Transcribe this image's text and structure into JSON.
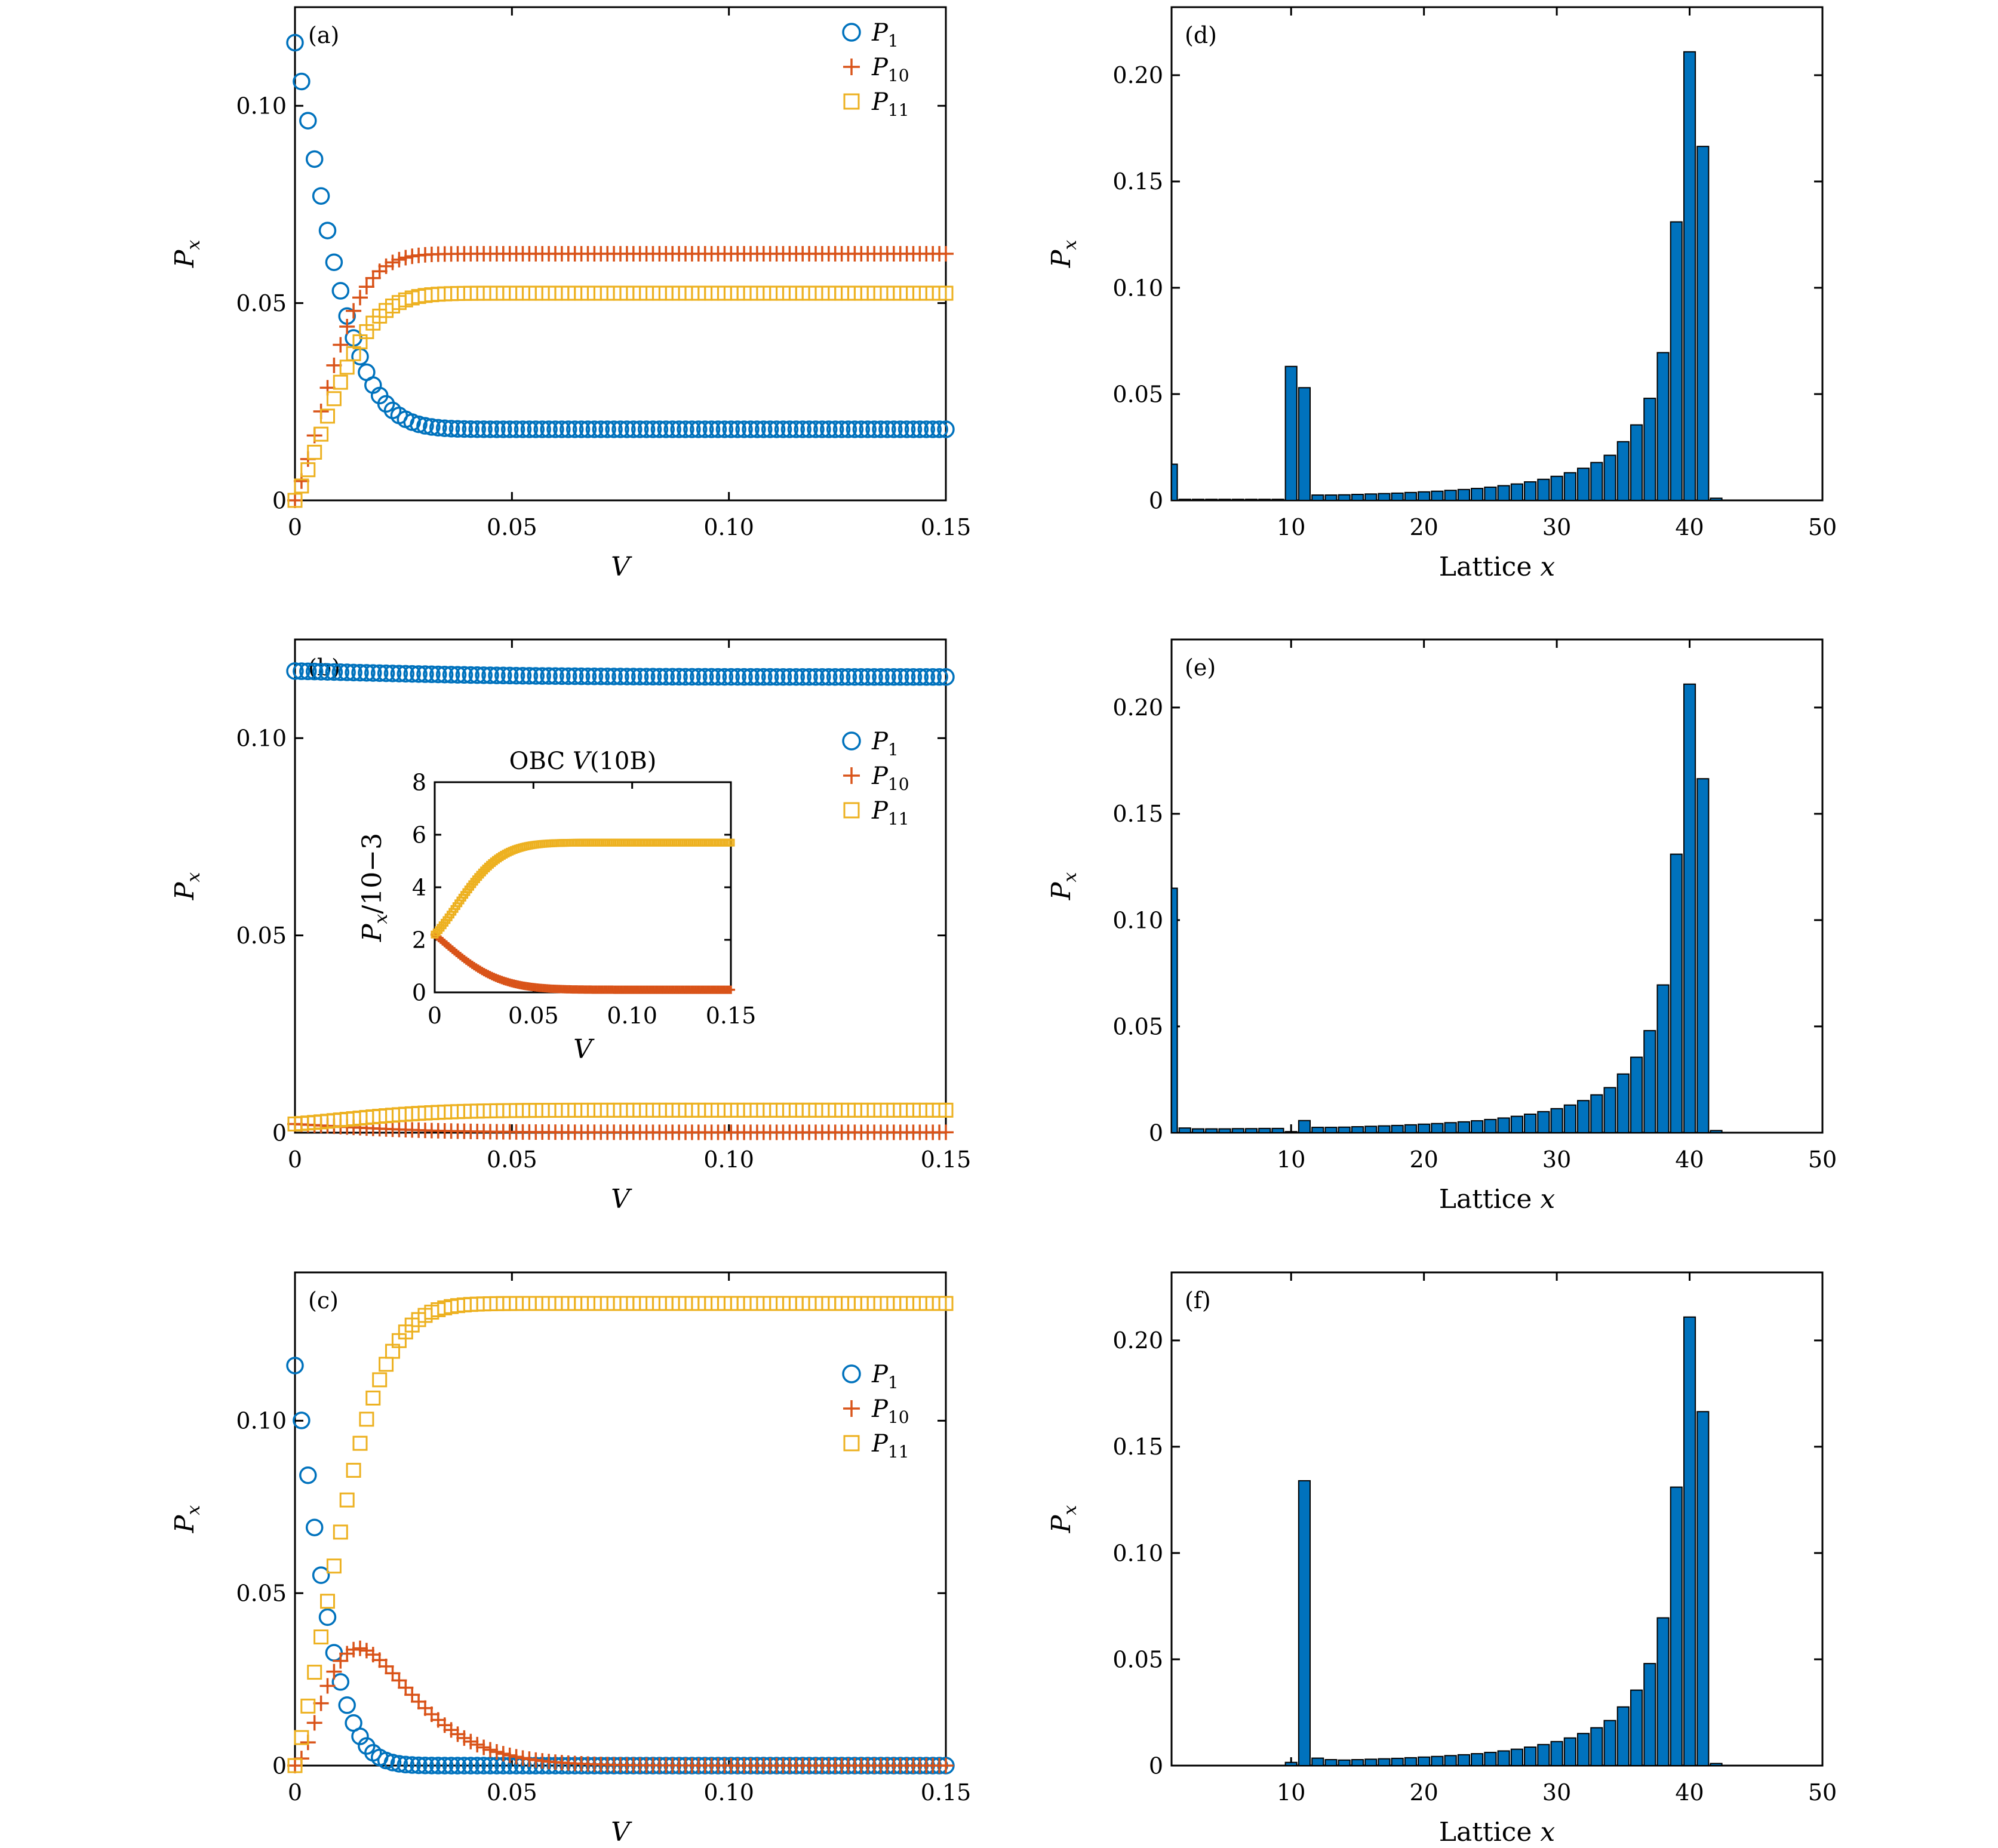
{
  "colors": {
    "p1": "#0072BD",
    "p10": "#D95319",
    "p11": "#EDB120",
    "bar": "#0072BD"
  },
  "chart_data": [
    {
      "panel": "(a)",
      "type": "scatter",
      "xlabel": "V",
      "ylabel": "P_x",
      "xlim": [
        0,
        0.15
      ],
      "ylim": [
        0,
        0.125
      ],
      "xticks": [
        "0",
        "0.05",
        "0.10",
        "0.15"
      ],
      "yticks": [
        "0",
        "0.05",
        "0.10"
      ],
      "legend": {
        "placement": "top-right",
        "entries": [
          "P1",
          "P10",
          "P11"
        ]
      },
      "series": [
        {
          "name": "P1",
          "marker": "circle",
          "model": "decay",
          "start": 0.116,
          "end": 0.018,
          "rate": 110
        },
        {
          "name": "P10",
          "marker": "plus",
          "model": "rise",
          "start": 0.0,
          "end": 0.0625,
          "rate": 95
        },
        {
          "name": "P11",
          "marker": "square",
          "model": "rise",
          "start": 0.0,
          "end": 0.0525,
          "rate": 85
        }
      ]
    },
    {
      "panel": "(b)",
      "type": "scatter",
      "xlabel": "V",
      "ylabel": "P_x",
      "xlim": [
        0,
        0.15
      ],
      "ylim": [
        0,
        0.125
      ],
      "xticks": [
        "0",
        "0.05",
        "0.10",
        "0.15"
      ],
      "yticks": [
        "0",
        "0.05",
        "0.10"
      ],
      "legend": {
        "placement": "right",
        "entries": [
          "P1",
          "P10",
          "P11"
        ]
      },
      "series": [
        {
          "name": "P1",
          "marker": "circle",
          "model": "decay",
          "start": 0.117,
          "end": 0.1155,
          "rate": 30
        },
        {
          "name": "P10",
          "marker": "plus",
          "model": "decay",
          "start": 0.0022,
          "end": 0.0001,
          "rate": 50
        },
        {
          "name": "P11",
          "marker": "square",
          "model": "rise",
          "start": 0.0022,
          "end": 0.0057,
          "rate": 45
        }
      ],
      "inset": {
        "title": "OBC V(10B)",
        "xlabel": "V",
        "ylabel": "P_x/10−3",
        "xlim": [
          0,
          0.15
        ],
        "ylim": [
          0,
          8
        ],
        "xticks": [
          "0",
          "0.05",
          "0.10",
          "0.15"
        ],
        "yticks": [
          "0",
          "2",
          "4",
          "6",
          "8"
        ],
        "series": [
          {
            "name": "P10",
            "marker": "plus",
            "model": "decay",
            "start": 2.2,
            "end": 0.1,
            "rate": 50
          },
          {
            "name": "P11",
            "marker": "square",
            "model": "rise",
            "start": 2.2,
            "end": 5.7,
            "rate": 45
          }
        ]
      }
    },
    {
      "panel": "(c)",
      "type": "scatter",
      "xlabel": "V",
      "ylabel": "P_x",
      "xlim": [
        0,
        0.15
      ],
      "ylim": [
        0,
        0.143
      ],
      "xticks": [
        "0",
        "0.05",
        "0.10",
        "0.15"
      ],
      "yticks": [
        "0",
        "0.05",
        "0.10"
      ],
      "legend": {
        "placement": "right",
        "entries": [
          "P1",
          "P10",
          "P11"
        ]
      },
      "series": [
        {
          "name": "P1",
          "marker": "circle",
          "model": "decay",
          "start": 0.116,
          "end": 0.0,
          "rate": 150
        },
        {
          "name": "P10",
          "marker": "plus",
          "model": "bump",
          "start": 0.0,
          "end": 0.0,
          "peak": 0.034,
          "peakx": 0.015,
          "rate": 40
        },
        {
          "name": "P11",
          "marker": "square",
          "model": "rise",
          "start": 0.0,
          "end": 0.134,
          "rate": 75
        }
      ]
    },
    {
      "panel": "(d)",
      "type": "bar",
      "xlabel": "Lattice x",
      "ylabel": "P_x",
      "xlim": [
        1,
        50
      ],
      "ylim": [
        0,
        0.232
      ],
      "xticks": [
        "10",
        "20",
        "30",
        "40",
        "50"
      ],
      "yticks": [
        "0",
        "0.05",
        "0.10",
        "0.15",
        "0.20"
      ],
      "x": [
        1,
        2,
        3,
        4,
        5,
        6,
        7,
        8,
        9,
        10,
        11,
        12,
        13,
        14,
        15,
        16,
        17,
        18,
        19,
        20,
        21,
        22,
        23,
        24,
        25,
        26,
        27,
        28,
        29,
        30,
        31,
        32,
        33,
        34,
        35,
        36,
        37,
        38,
        39,
        40,
        41,
        42,
        43,
        44,
        45,
        46,
        47,
        48,
        49,
        50
      ],
      "values": [
        0.017,
        0.0005,
        0.0005,
        0.0005,
        0.0005,
        0.0005,
        0.0005,
        0.0005,
        0.0005,
        0.063,
        0.053,
        0.0025,
        0.0025,
        0.0026,
        0.0028,
        0.003,
        0.0032,
        0.0034,
        0.0037,
        0.004,
        0.0043,
        0.0047,
        0.0051,
        0.0056,
        0.0062,
        0.0069,
        0.0077,
        0.0087,
        0.0099,
        0.0113,
        0.013,
        0.0151,
        0.0178,
        0.0212,
        0.0276,
        0.0355,
        0.048,
        0.0695,
        0.131,
        0.211,
        0.1665,
        0.001,
        0,
        0,
        0,
        0,
        0,
        0,
        0,
        0
      ]
    },
    {
      "panel": "(e)",
      "type": "bar",
      "xlabel": "Lattice x",
      "ylabel": "P_x",
      "xlim": [
        1,
        50
      ],
      "ylim": [
        0,
        0.232
      ],
      "xticks": [
        "10",
        "20",
        "30",
        "40",
        "50"
      ],
      "yticks": [
        "0",
        "0.05",
        "0.10",
        "0.15",
        "0.20"
      ],
      "x": [
        1,
        2,
        3,
        4,
        5,
        6,
        7,
        8,
        9,
        10,
        11,
        12,
        13,
        14,
        15,
        16,
        17,
        18,
        19,
        20,
        21,
        22,
        23,
        24,
        25,
        26,
        27,
        28,
        29,
        30,
        31,
        32,
        33,
        34,
        35,
        36,
        37,
        38,
        39,
        40,
        41,
        42,
        43,
        44,
        45,
        46,
        47,
        48,
        49,
        50
      ],
      "values": [
        0.115,
        0.0022,
        0.0018,
        0.0018,
        0.0018,
        0.0019,
        0.0019,
        0.002,
        0.002,
        0.0005,
        0.0057,
        0.0025,
        0.0025,
        0.0026,
        0.0028,
        0.003,
        0.0032,
        0.0034,
        0.0037,
        0.004,
        0.0043,
        0.0047,
        0.0051,
        0.0056,
        0.0062,
        0.0069,
        0.0077,
        0.0087,
        0.0099,
        0.0113,
        0.013,
        0.0151,
        0.0178,
        0.0212,
        0.0276,
        0.0355,
        0.048,
        0.0695,
        0.131,
        0.211,
        0.1665,
        0.001,
        0,
        0,
        0,
        0,
        0,
        0,
        0,
        0
      ]
    },
    {
      "panel": "(f)",
      "type": "bar",
      "xlabel": "Lattice x",
      "ylabel": "P_x",
      "xlim": [
        1,
        50
      ],
      "ylim": [
        0,
        0.232
      ],
      "xticks": [
        "10",
        "20",
        "30",
        "40",
        "50"
      ],
      "yticks": [
        "0",
        "0.05",
        "0.10",
        "0.15",
        "0.20"
      ],
      "x": [
        1,
        2,
        3,
        4,
        5,
        6,
        7,
        8,
        9,
        10,
        11,
        12,
        13,
        14,
        15,
        16,
        17,
        18,
        19,
        20,
        21,
        22,
        23,
        24,
        25,
        26,
        27,
        28,
        29,
        30,
        31,
        32,
        33,
        34,
        35,
        36,
        37,
        38,
        39,
        40,
        41,
        42,
        43,
        44,
        45,
        46,
        47,
        48,
        49,
        50
      ],
      "values": [
        0,
        0,
        0,
        0,
        0,
        0,
        0,
        0,
        0,
        0.0015,
        0.134,
        0.0035,
        0.0028,
        0.0026,
        0.0028,
        0.003,
        0.0032,
        0.0034,
        0.0037,
        0.004,
        0.0043,
        0.0047,
        0.0051,
        0.0056,
        0.0062,
        0.0069,
        0.0077,
        0.0087,
        0.0099,
        0.0113,
        0.013,
        0.0151,
        0.0178,
        0.0212,
        0.0276,
        0.0355,
        0.048,
        0.0695,
        0.131,
        0.211,
        0.1665,
        0.001,
        0,
        0,
        0,
        0,
        0,
        0,
        0,
        0
      ]
    }
  ]
}
